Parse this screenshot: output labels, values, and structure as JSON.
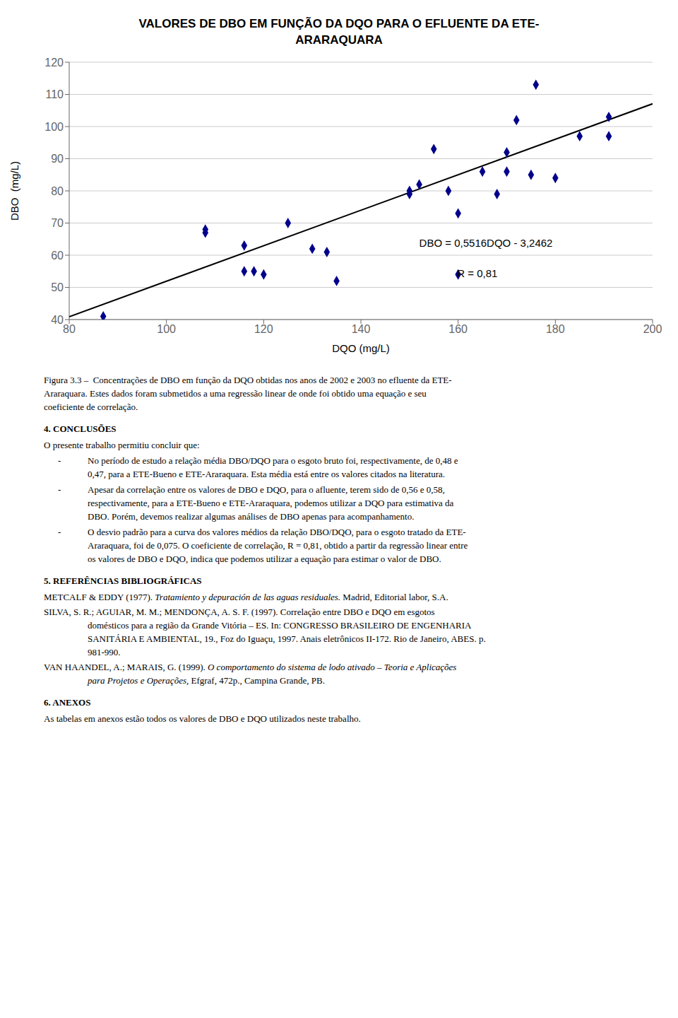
{
  "chart_data": {
    "type": "scatter",
    "title": "VALORES DE DBO EM FUNÇÃO DA DQO PARA O EFLUENTE DA ETE-\nARARAQUARA",
    "xlabel": "DQO (mg/L)",
    "ylabel": "DBO  (mg/L)",
    "xlim": [
      80,
      200
    ],
    "ylim": [
      40,
      120
    ],
    "xticks": [
      80,
      100,
      120,
      140,
      160,
      180,
      200
    ],
    "yticks": [
      40,
      50,
      60,
      70,
      80,
      90,
      100,
      110,
      120
    ],
    "grid": "y",
    "series": [
      {
        "type": "line",
        "color": "black",
        "line_style": "solid",
        "x": [
          80,
          200
        ],
        "values": [
          40.8818,
          107.0738
        ]
      },
      {
        "type": "scatter",
        "color": "#00008B",
        "marker": "diamond",
        "x": [
          87,
          108,
          108,
          116,
          116,
          118,
          120,
          125,
          130,
          133,
          135,
          150,
          150,
          152,
          155,
          158,
          160,
          160,
          165,
          168,
          170,
          170,
          172,
          175,
          176,
          180,
          185,
          191,
          191
        ],
        "values": [
          41,
          68,
          67,
          63,
          55,
          55,
          54,
          70,
          62,
          61,
          52,
          80,
          79,
          82,
          93,
          80,
          73,
          54,
          86,
          79,
          92,
          86,
          102,
          85,
          113,
          84,
          97,
          103,
          97
        ]
      }
    ],
    "annotations": [
      "DBO = 0,5516DQO - 3,2462",
      "R = 0,81"
    ]
  },
  "body": [
    {
      "kind": "paragraph",
      "lines": [
        "Figura 3.3 –  Concentrações de DBO em função da DQO obtidas nos anos de 2002 e 2003 no efluente da ETE-",
        "Araraquara. Estes dados foram submetidos a uma regressão linear de onde foi obtido uma equação e seu",
        "coeficiente de correlação."
      ]
    },
    {
      "kind": "heading",
      "lines": [
        "4. CONCLUSÕES"
      ]
    },
    {
      "kind": "paragraph",
      "lines": [
        "O presente trabalho permitiu concluir que:"
      ]
    },
    {
      "kind": "bullet",
      "marker": "-",
      "lines": [
        "No período de estudo a relação média DBO/DQO para o esgoto bruto foi, respectivamente, de 0,48 e",
        "0,47, para a ETE-Bueno e ETE-Araraquara. Esta média está entre os valores citados na literatura."
      ]
    },
    {
      "kind": "bullet",
      "marker": "-",
      "lines": [
        "Apesar da correlação entre os valores de DBO e DQO, para o afluente, terem sido de 0,56 e 0,58,",
        "respectivamente, para a ETE-Bueno e ETE-Araraquara, podemos utilizar a DQO para estimativa da",
        "DBO. Porém, devemos realizar algumas análises de DBO apenas para acompanhamento."
      ]
    },
    {
      "kind": "bullet",
      "marker": "-",
      "lines": [
        "O desvio padrão para a curva dos valores médios da relação DBO/DQO, para o esgoto tratado da ETE-",
        "Araraquara, foi de 0,075. O coeficiente de correlação, R = 0,81, obtido a partir da regressão linear entre",
        "os valores de DBO e DQO, indica que podemos utilizar a equação para estimar o valor de DBO."
      ]
    },
    {
      "kind": "heading",
      "lines": [
        "5. REFERÊNCIAS BIBLIOGRÁFICAS"
      ]
    },
    {
      "kind": "reference",
      "lines": [
        [
          {
            "text": "METCALF & EDDY (1977). "
          },
          {
            "text": "Tratamiento y depuración de las aguas residuales.",
            "italic": true
          },
          {
            "text": " Madrid, Editorial labor, S.A."
          }
        ]
      ]
    },
    {
      "kind": "reference",
      "lines": [
        "SILVA, S. R.; AGUIAR, M. M.; MENDONÇA, A. S. F. (1997). Correlação entre DBO e DQO em esgotos",
        "domésticos para a região da Grande Vitória – ES. In: CONGRESSO BRASILEIRO DE ENGENHARIA",
        "SANITÁRIA E AMBIENTAL, 19., Foz do Iguaçu, 1997. Anais eletrônicos II-172. Rio de Janeiro, ABES. p.",
        "981-990."
      ]
    },
    {
      "kind": "reference",
      "lines": [
        [
          {
            "text": "VAN HAANDEL, A.; MARAIS, G. (1999). "
          },
          {
            "text": "O comportamento do sistema de lodo ativado – Teoria e Aplicações",
            "italic": true
          }
        ],
        [
          {
            "text": "para Projetos e Operações,",
            "italic": true
          },
          {
            "text": " Efgraf, 472p., Campina Grande, PB."
          }
        ]
      ]
    },
    {
      "kind": "heading",
      "lines": [
        "6. ANEXOS"
      ]
    },
    {
      "kind": "paragraph",
      "lines": [
        "As tabelas em anexos estão todos os valores de DBO e DQO utilizados neste trabalho."
      ]
    }
  ]
}
